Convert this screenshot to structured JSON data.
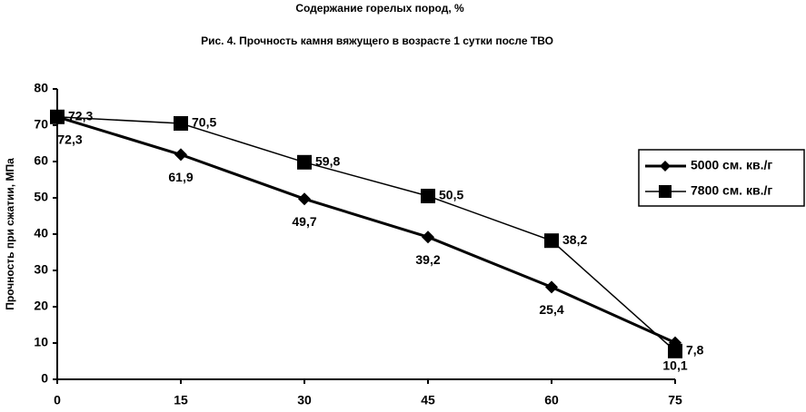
{
  "chart_data": {
    "type": "line",
    "x_label": "Содержание горелых пород, %",
    "title": "Рис. 4. Прочность камня вяжущего в возрасте 1 сутки после ТВО",
    "y_label": "Прочность при сжатии, МПа",
    "x": [
      0,
      15,
      30,
      45,
      60,
      75
    ],
    "series": [
      {
        "name": "5000 см. кв./г",
        "color": "#000000",
        "marker": "diamond",
        "values": [
          72.3,
          61.9,
          49.7,
          39.2,
          25.4,
          10.1
        ],
        "value_labels": [
          "72,3",
          "61,9",
          "49,7",
          "39,2",
          "25,4",
          "10,1"
        ]
      },
      {
        "name": "7800 см. кв./г",
        "color": "#000000",
        "marker": "square",
        "values": [
          72.3,
          70.5,
          59.8,
          50.5,
          38.2,
          7.8
        ],
        "value_labels": [
          "72,3",
          "70,5",
          "59,8",
          "50,5",
          "38,2",
          "7,8"
        ]
      }
    ],
    "xlim": [
      0,
      75
    ],
    "xticks": [
      0,
      15,
      30,
      45,
      60,
      75
    ],
    "ylim": [
      0,
      80
    ],
    "yticks": [
      0,
      10,
      20,
      30,
      40,
      50,
      60,
      70,
      80
    ],
    "legend": "right"
  }
}
